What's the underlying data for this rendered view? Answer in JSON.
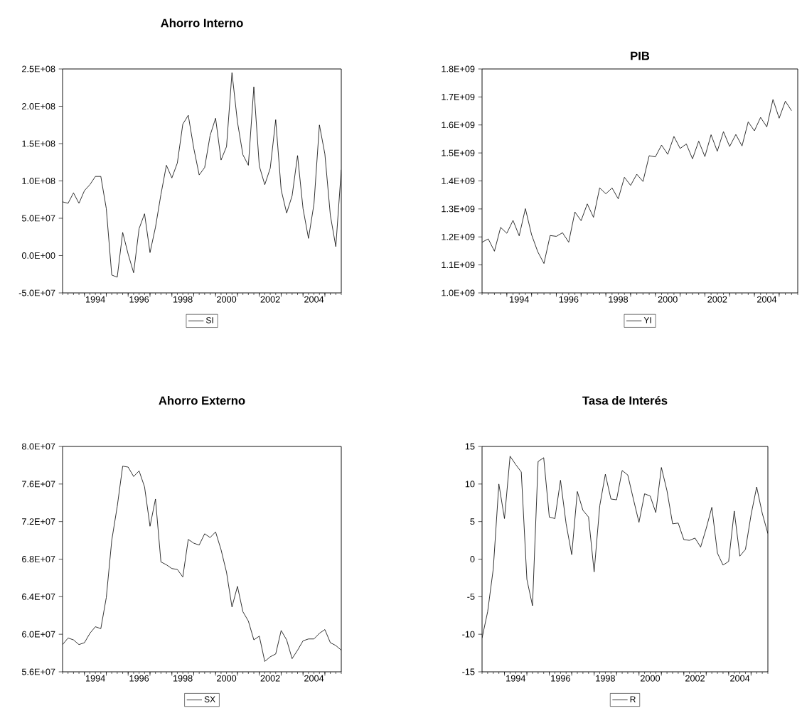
{
  "chart_data": [
    {
      "type": "line",
      "title": "Ahorro Interno",
      "x": [
        1993,
        1993.25,
        1993.5,
        1993.75,
        1994,
        1994.25,
        1994.5,
        1994.75,
        1995,
        1995.25,
        1995.5,
        1995.75,
        1996,
        1996.25,
        1996.5,
        1996.75,
        1997,
        1997.25,
        1997.5,
        1997.75,
        1998,
        1998.25,
        1998.5,
        1998.75,
        1999,
        1999.25,
        1999.5,
        1999.75,
        2000,
        2000.25,
        2000.5,
        2000.75,
        2001,
        2001.25,
        2001.5,
        2001.75,
        2002,
        2002.25,
        2002.5,
        2002.75,
        2003,
        2003.25,
        2003.5,
        2003.75,
        2004,
        2004.25,
        2004.5,
        2004.75,
        2005,
        2005.25,
        2005.5,
        2005.75
      ],
      "series": [
        {
          "name": "SI",
          "color": "#000000",
          "values": [
            72000000.0,
            70000000.0,
            84000000.0,
            70000000.0,
            87000000.0,
            95000000.0,
            106000000.0,
            106000000.0,
            63000000.0,
            -26000000.0,
            -29000000.0,
            31000000.0,
            2000000.0,
            -23000000.0,
            36000000.0,
            56000000.0,
            4000000.0,
            38000000.0,
            82000000.0,
            121000000.0,
            104000000.0,
            124000000.0,
            176000000.0,
            188000000.0,
            144000000.0,
            108000000.0,
            118000000.0,
            161000000.0,
            184000000.0,
            128000000.0,
            146000000.0,
            245000000.0,
            179000000.0,
            135000000.0,
            121000000.0,
            226000000.0,
            120000000.0,
            95000000.0,
            117000000.0,
            182000000.0,
            88000000.0,
            57000000.0,
            80000000.0,
            134000000.0,
            63000000.0,
            23000000.0,
            69000000.0,
            175000000.0,
            136000000.0,
            54000000.0,
            12000000.0,
            115000000.0
          ]
        }
      ],
      "xlim": [
        1993,
        2005.75
      ],
      "xticks": [
        {
          "value": 1994,
          "label": null
        },
        {
          "value": 1995,
          "label": null
        },
        {
          "value": 1996,
          "label": null
        },
        {
          "value": 1997,
          "label": null
        },
        {
          "value": 1998,
          "label": null
        },
        {
          "value": 1999,
          "label": null
        },
        {
          "value": 2000,
          "label": null
        },
        {
          "value": 2001,
          "label": null
        },
        {
          "value": 2002,
          "label": null
        },
        {
          "value": 2003,
          "label": null
        },
        {
          "value": 2004,
          "label": null
        },
        {
          "value": 2005,
          "label": null
        },
        {
          "value": 1994.5,
          "label": "1994"
        },
        {
          "value": 1996.5,
          "label": "1996"
        },
        {
          "value": 1998.5,
          "label": "1998"
        },
        {
          "value": 2000.5,
          "label": "2000"
        },
        {
          "value": 2002.5,
          "label": "2002"
        },
        {
          "value": 2004.5,
          "label": "2004"
        }
      ],
      "ylim": [
        -50000000.0,
        250000000.0
      ],
      "yticks": [
        {
          "value": -50000000.0,
          "label": "-5.0E+07"
        },
        {
          "value": 0,
          "label": "0.0E+00"
        },
        {
          "value": 50000000.0,
          "label": "5.0E+07"
        },
        {
          "value": 100000000.0,
          "label": "1.0E+08"
        },
        {
          "value": 150000000.0,
          "label": "1.5E+08"
        },
        {
          "value": 200000000.0,
          "label": "2.0E+08"
        },
        {
          "value": 250000000.0,
          "label": "2.5E+08"
        }
      ],
      "legend": "bottom"
    },
    {
      "type": "line",
      "title": "PIB",
      "x": [
        1993,
        1993.25,
        1993.5,
        1993.75,
        1994,
        1994.25,
        1994.5,
        1994.75,
        1995,
        1995.25,
        1995.5,
        1995.75,
        1996,
        1996.25,
        1996.5,
        1996.75,
        1997,
        1997.25,
        1997.5,
        1997.75,
        1998,
        1998.25,
        1998.5,
        1998.75,
        1999,
        1999.25,
        1999.5,
        1999.75,
        2000,
        2000.25,
        2000.5,
        2000.75,
        2001,
        2001.25,
        2001.5,
        2001.75,
        2002,
        2002.25,
        2002.5,
        2002.75,
        2003,
        2003.25,
        2003.5,
        2003.75,
        2004,
        2004.25,
        2004.5,
        2004.75,
        2005,
        2005.25,
        2005.5
      ],
      "series": [
        {
          "name": "YI",
          "color": "#000000",
          "values": [
            1181000000.0,
            1193000000.0,
            1149000000.0,
            1234000000.0,
            1213000000.0,
            1259000000.0,
            1204000000.0,
            1301000000.0,
            1208000000.0,
            1147000000.0,
            1105000000.0,
            1205000000.0,
            1202000000.0,
            1215000000.0,
            1181000000.0,
            1289000000.0,
            1258000000.0,
            1318000000.0,
            1270000000.0,
            1375000000.0,
            1354000000.0,
            1375000000.0,
            1336000000.0,
            1413000000.0,
            1384000000.0,
            1424000000.0,
            1398000000.0,
            1490000000.0,
            1486000000.0,
            1528000000.0,
            1495000000.0,
            1559000000.0,
            1516000000.0,
            1532000000.0,
            1479000000.0,
            1542000000.0,
            1487000000.0,
            1565000000.0,
            1506000000.0,
            1576000000.0,
            1523000000.0,
            1566000000.0,
            1525000000.0,
            1611000000.0,
            1579000000.0,
            1627000000.0,
            1593000000.0,
            1691000000.0,
            1624000000.0,
            1685000000.0,
            1651000000.0
          ]
        }
      ],
      "xlim": [
        1993,
        2005.75
      ],
      "xticks": [
        {
          "value": 1994,
          "label": null
        },
        {
          "value": 1995,
          "label": null
        },
        {
          "value": 1996,
          "label": null
        },
        {
          "value": 1997,
          "label": null
        },
        {
          "value": 1998,
          "label": null
        },
        {
          "value": 1999,
          "label": null
        },
        {
          "value": 2000,
          "label": null
        },
        {
          "value": 2001,
          "label": null
        },
        {
          "value": 2002,
          "label": null
        },
        {
          "value": 2003,
          "label": null
        },
        {
          "value": 2004,
          "label": null
        },
        {
          "value": 2005,
          "label": null
        },
        {
          "value": 1994.5,
          "label": "1994"
        },
        {
          "value": 1996.5,
          "label": "1996"
        },
        {
          "value": 1998.5,
          "label": "1998"
        },
        {
          "value": 2000.5,
          "label": "2000"
        },
        {
          "value": 2002.5,
          "label": "2002"
        },
        {
          "value": 2004.5,
          "label": "2004"
        }
      ],
      "ylim": [
        1000000000.0,
        1800000000.0
      ],
      "yticks": [
        {
          "value": 1000000000.0,
          "label": "1.0E+09"
        },
        {
          "value": 1100000000.0,
          "label": "1.1E+09"
        },
        {
          "value": 1200000000.0,
          "label": "1.2E+09"
        },
        {
          "value": 1300000000.0,
          "label": "1.3E+09"
        },
        {
          "value": 1400000000.0,
          "label": "1.4E+09"
        },
        {
          "value": 1500000000.0,
          "label": "1.5E+09"
        },
        {
          "value": 1600000000.0,
          "label": "1.6E+09"
        },
        {
          "value": 1700000000.0,
          "label": "1.7E+09"
        },
        {
          "value": 1800000000.0,
          "label": "1.8E+09"
        }
      ],
      "legend": "bottom"
    },
    {
      "type": "line",
      "title": "Ahorro Externo",
      "x": [
        1993,
        1993.25,
        1993.5,
        1993.75,
        1994,
        1994.25,
        1994.5,
        1994.75,
        1995,
        1995.25,
        1995.5,
        1995.75,
        1996,
        1996.25,
        1996.5,
        1996.75,
        1997,
        1997.25,
        1997.5,
        1997.75,
        1998,
        1998.25,
        1998.5,
        1998.75,
        1999,
        1999.25,
        1999.5,
        1999.75,
        2000,
        2000.25,
        2000.5,
        2000.75,
        2001,
        2001.25,
        2001.5,
        2001.75,
        2002,
        2002.25,
        2002.5,
        2002.75,
        2003,
        2003.25,
        2003.5,
        2003.75,
        2004,
        2004.25,
        2004.5,
        2004.75,
        2005,
        2005.25,
        2005.5,
        2005.75
      ],
      "series": [
        {
          "name": "SX",
          "color": "#000000",
          "values": [
            58900000.0,
            59600000.0,
            59400000.0,
            58900000.0,
            59100000.0,
            60100000.0,
            60800000.0,
            60600000.0,
            63900000.0,
            70000000.0,
            73600000.0,
            77900000.0,
            77800000.0,
            76800000.0,
            77400000.0,
            75700000.0,
            71500000.0,
            74400000.0,
            67700000.0,
            67400000.0,
            67000000.0,
            66900000.0,
            66100000.0,
            70100000.0,
            69700000.0,
            69500000.0,
            70700000.0,
            70300000.0,
            70900000.0,
            69000000.0,
            66600000.0,
            62900000.0,
            65100000.0,
            62400000.0,
            61400000.0,
            59400000.0,
            59800000.0,
            57100000.0,
            57600000.0,
            57900000.0,
            60400000.0,
            59400000.0,
            57400000.0,
            58300000.0,
            59300000.0,
            59500000.0,
            59500000.0,
            60100000.0,
            60500000.0,
            59100000.0,
            58800000.0,
            58300000.0
          ]
        }
      ],
      "xlim": [
        1993,
        2005.75
      ],
      "xticks": [
        {
          "value": 1994,
          "label": null
        },
        {
          "value": 1995,
          "label": null
        },
        {
          "value": 1996,
          "label": null
        },
        {
          "value": 1997,
          "label": null
        },
        {
          "value": 1998,
          "label": null
        },
        {
          "value": 1999,
          "label": null
        },
        {
          "value": 2000,
          "label": null
        },
        {
          "value": 2001,
          "label": null
        },
        {
          "value": 2002,
          "label": null
        },
        {
          "value": 2003,
          "label": null
        },
        {
          "value": 2004,
          "label": null
        },
        {
          "value": 2005,
          "label": null
        },
        {
          "value": 1994.5,
          "label": "1994"
        },
        {
          "value": 1996.5,
          "label": "1996"
        },
        {
          "value": 1998.5,
          "label": "1998"
        },
        {
          "value": 2000.5,
          "label": "2000"
        },
        {
          "value": 2002.5,
          "label": "2002"
        },
        {
          "value": 2004.5,
          "label": "2004"
        }
      ],
      "ylim": [
        56000000.0,
        80000000.0
      ],
      "yticks": [
        {
          "value": 56000000.0,
          "label": "5.6E+07"
        },
        {
          "value": 60000000.0,
          "label": "6.0E+07"
        },
        {
          "value": 64000000.0,
          "label": "6.4E+07"
        },
        {
          "value": 68000000.0,
          "label": "6.8E+07"
        },
        {
          "value": 72000000.0,
          "label": "7.2E+07"
        },
        {
          "value": 76000000.0,
          "label": "7.6E+07"
        },
        {
          "value": 80000000.0,
          "label": "8.0E+07"
        }
      ],
      "legend": "bottom"
    },
    {
      "type": "line",
      "title": "Tasa de Interés",
      "x": [
        1993,
        1993.25,
        1993.5,
        1993.75,
        1994,
        1994.25,
        1994.5,
        1994.75,
        1995,
        1995.25,
        1995.5,
        1995.75,
        1996,
        1996.25,
        1996.5,
        1996.75,
        1997,
        1997.25,
        1997.5,
        1997.75,
        1998,
        1998.25,
        1998.5,
        1998.75,
        1999,
        1999.25,
        1999.5,
        1999.75,
        2000,
        2000.25,
        2000.5,
        2000.75,
        2001,
        2001.25,
        2001.5,
        2001.75,
        2002,
        2002.25,
        2002.5,
        2002.75,
        2003,
        2003.25,
        2003.5,
        2003.75,
        2004,
        2004.25,
        2004.5,
        2004.75,
        2005,
        2005.25,
        2005.5,
        2005.75
      ],
      "series": [
        {
          "name": "R",
          "color": "#000000",
          "values": [
            -10.5,
            -7.0,
            -1.3,
            10.0,
            5.4,
            13.7,
            12.6,
            11.6,
            -2.7,
            -6.2,
            13.0,
            13.5,
            5.6,
            5.4,
            10.5,
            4.7,
            0.6,
            9.0,
            6.5,
            5.6,
            -1.7,
            7.1,
            11.3,
            8.0,
            7.9,
            11.8,
            11.2,
            8.0,
            4.9,
            8.7,
            8.4,
            6.2,
            12.2,
            9.1,
            4.7,
            4.8,
            2.6,
            2.5,
            2.8,
            1.6,
            4.1,
            6.9,
            0.8,
            -0.8,
            -0.3,
            6.4,
            0.4,
            1.3,
            5.9,
            9.6,
            6.1,
            3.4
          ]
        }
      ],
      "xlim": [
        1993,
        2005.75
      ],
      "xticks": [
        {
          "value": 1994,
          "label": null
        },
        {
          "value": 1995,
          "label": null
        },
        {
          "value": 1996,
          "label": null
        },
        {
          "value": 1997,
          "label": null
        },
        {
          "value": 1998,
          "label": null
        },
        {
          "value": 1999,
          "label": null
        },
        {
          "value": 2000,
          "label": null
        },
        {
          "value": 2001,
          "label": null
        },
        {
          "value": 2002,
          "label": null
        },
        {
          "value": 2003,
          "label": null
        },
        {
          "value": 2004,
          "label": null
        },
        {
          "value": 2005,
          "label": null
        },
        {
          "value": 1994.5,
          "label": "1994"
        },
        {
          "value": 1996.5,
          "label": "1996"
        },
        {
          "value": 1998.5,
          "label": "1998"
        },
        {
          "value": 2000.5,
          "label": "2000"
        },
        {
          "value": 2002.5,
          "label": "2002"
        },
        {
          "value": 2004.5,
          "label": "2004"
        }
      ],
      "ylim": [
        -15,
        15
      ],
      "yticks": [
        -15,
        -10,
        -5,
        0,
        5,
        10,
        15
      ],
      "legend": "bottom"
    }
  ]
}
